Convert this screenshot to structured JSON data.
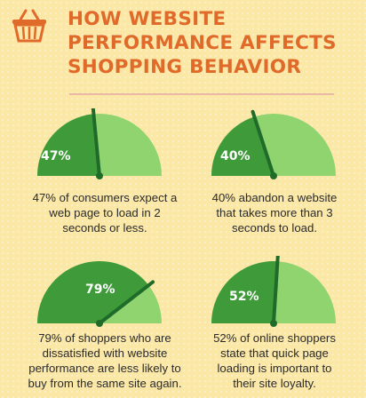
{
  "header": {
    "title_lines": [
      "HOW WEBSITE",
      "PERFORMANCE AFFECTS",
      "SHOPPING BEHAVIOR"
    ],
    "icon": "basket-icon"
  },
  "colors": {
    "title": "#e06a2a",
    "gauge_dark": "#3f9b3a",
    "gauge_light": "#8fd46f",
    "needle": "#1f6b2a",
    "background": "#fbe7a6"
  },
  "gauges": [
    {
      "percent": 47,
      "label": "47%",
      "caption_lines": [
        "47% of consumers expect a",
        "web page to load in 2",
        "seconds or less."
      ]
    },
    {
      "percent": 40,
      "label": "40%",
      "caption_lines": [
        "40% abandon a website",
        "that takes more than 3",
        "seconds to load."
      ]
    },
    {
      "percent": 79,
      "label": "79%",
      "caption_lines": [
        "79% of shoppers who are",
        "dissatisfied with website",
        "performance are less likely to",
        "buy from the same site again."
      ]
    },
    {
      "percent": 52,
      "label": "52%",
      "caption_lines": [
        "52% of online shoppers",
        "state that quick page",
        "loading is important to",
        "their site loyalty."
      ]
    }
  ]
}
